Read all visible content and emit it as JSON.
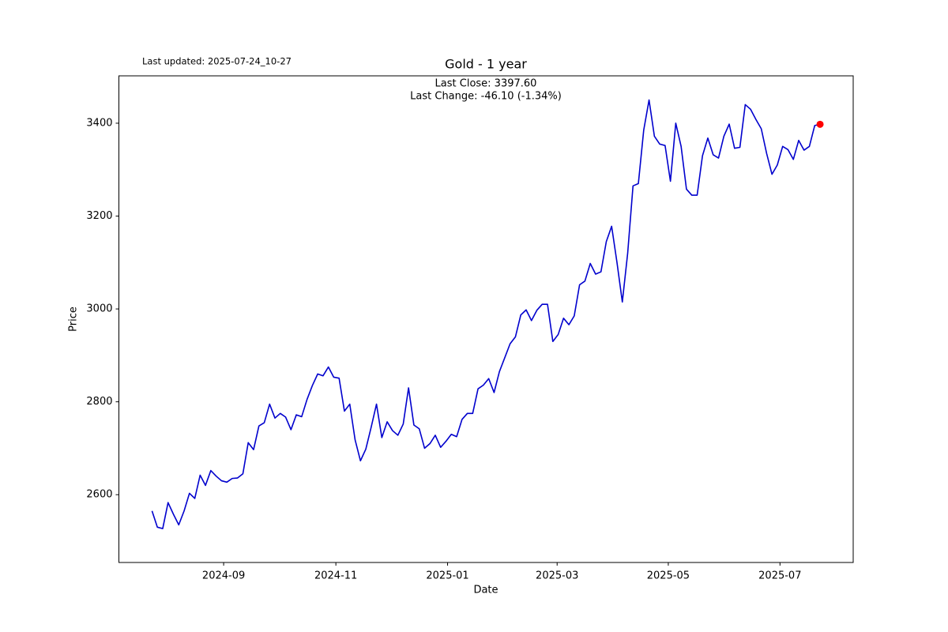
{
  "chart_data": {
    "type": "line",
    "title": "Gold - 1 year",
    "last_updated": "Last updated: 2025-07-24_10-27",
    "annotations": [
      "Last Close: 3397.60",
      "Last Change: -46.10 (-1.34%)"
    ],
    "xlabel": "Date",
    "ylabel": "Price",
    "color": "#0000cd",
    "marker_color": "#ff0000",
    "values": [
      2565,
      2530,
      2527,
      2583,
      2558,
      2535,
      2565,
      2603,
      2592,
      2642,
      2620,
      2652,
      2640,
      2630,
      2627,
      2635,
      2636,
      2645,
      2712,
      2697,
      2748,
      2755,
      2795,
      2765,
      2775,
      2767,
      2740,
      2772,
      2768,
      2805,
      2835,
      2860,
      2856,
      2875,
      2853,
      2851,
      2780,
      2795,
      2718,
      2673,
      2698,
      2745,
      2795,
      2723,
      2757,
      2738,
      2728,
      2752,
      2830,
      2750,
      2742,
      2700,
      2710,
      2728,
      2702,
      2715,
      2730,
      2725,
      2762,
      2775,
      2775,
      2828,
      2836,
      2850,
      2820,
      2865,
      2895,
      2925,
      2940,
      2987,
      2998,
      2975,
      2997,
      3010,
      3010,
      2930,
      2945,
      2980,
      2966,
      2985,
      3052,
      3060,
      3098,
      3075,
      3080,
      3145,
      3178,
      3100,
      3015,
      3120,
      3265,
      3270,
      3385,
      3450,
      3372,
      3355,
      3352,
      3275,
      3400,
      3350,
      3258,
      3245,
      3245,
      3330,
      3368,
      3332,
      3325,
      3372,
      3398,
      3346,
      3348,
      3440,
      3430,
      3408,
      3388,
      3335,
      3290,
      3310,
      3350,
      3343,
      3322,
      3363,
      3342,
      3350,
      3395,
      3397.6
    ],
    "xlim": [
      -6.2,
      131.2
    ],
    "xticks": [
      {
        "value": 13.4,
        "label": "2024-09"
      },
      {
        "value": 34.4,
        "label": "2024-11"
      },
      {
        "value": 55.3,
        "label": "2025-01"
      },
      {
        "value": 75.8,
        "label": "2025-03"
      },
      {
        "value": 96.6,
        "label": "2025-05"
      },
      {
        "value": 117.5,
        "label": "2025-07"
      }
    ],
    "ylim": [
      2454,
      3502
    ],
    "yticks": [
      2600,
      2800,
      3000,
      3200,
      3400
    ],
    "grid": false
  }
}
